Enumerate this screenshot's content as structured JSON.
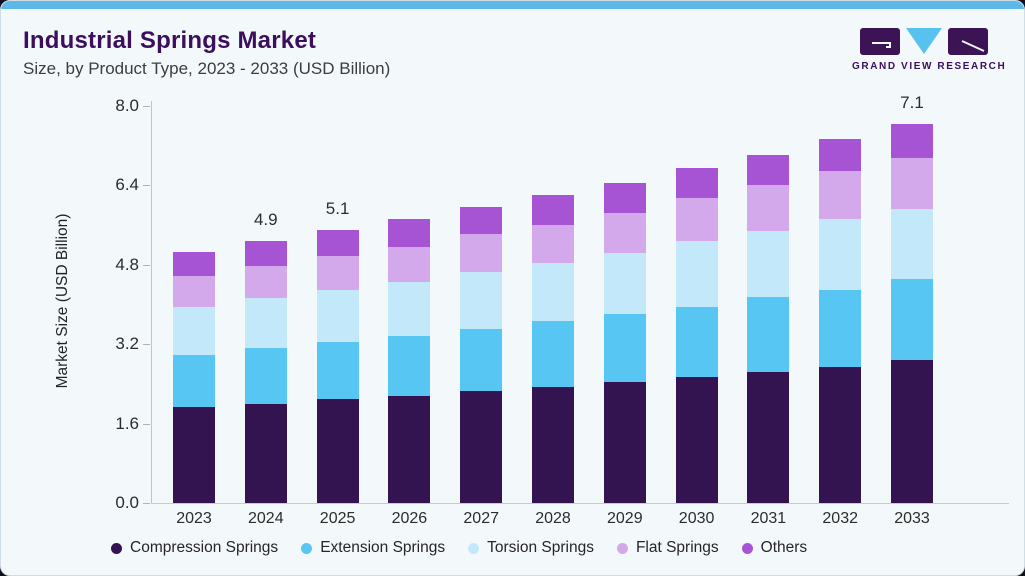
{
  "header": {
    "title": "Industrial Springs Market",
    "subtitle": "Size, by Product Type, 2023 - 2033 (USD Billion)"
  },
  "logo": {
    "text": "GRAND VIEW RESEARCH",
    "purple": "#3c1354",
    "cyan": "#56c2ed"
  },
  "colors": {
    "card_background": "#f3f8fb",
    "top_strip": "#5cb9e7",
    "title_text": "#3c0e5e",
    "axis_text": "#2c2c2c"
  },
  "chart_data": {
    "type": "bar",
    "stacked": true,
    "title": "Industrial Springs Market Size, by Product Type, 2023 - 2033 (USD Billion)",
    "xlabel": "",
    "ylabel": "Market Size (USD Billion)",
    "ylim": [
      0,
      8.0
    ],
    "y_ticks": [
      "0.0",
      "1.6",
      "3.2",
      "4.8",
      "6.4",
      "8.0"
    ],
    "grid": false,
    "legend_position": "bottom",
    "categories": [
      "2023",
      "2024",
      "2025",
      "2026",
      "2027",
      "2028",
      "2029",
      "2030",
      "2031",
      "2032",
      "2033"
    ],
    "series": [
      {
        "name": "Compression Springs",
        "color": "#341450",
        "values": [
          1.79,
          1.85,
          1.94,
          2.0,
          2.09,
          2.18,
          2.26,
          2.36,
          2.45,
          2.55,
          2.68
        ]
      },
      {
        "name": "Extension Springs",
        "color": "#58c6f2",
        "values": [
          0.99,
          1.05,
          1.07,
          1.12,
          1.17,
          1.22,
          1.28,
          1.32,
          1.4,
          1.43,
          1.51
        ]
      },
      {
        "name": "Torsion Springs",
        "color": "#c3e8f9",
        "values": [
          0.89,
          0.94,
          0.97,
          1.01,
          1.06,
          1.09,
          1.15,
          1.22,
          1.25,
          1.34,
          1.32
        ]
      },
      {
        "name": "Flat Springs",
        "color": "#d3a9ec",
        "values": [
          0.59,
          0.59,
          0.64,
          0.67,
          0.71,
          0.72,
          0.75,
          0.81,
          0.86,
          0.89,
          0.95
        ]
      },
      {
        "name": "Others",
        "color": "#a654d4",
        "values": [
          0.44,
          0.47,
          0.49,
          0.51,
          0.52,
          0.56,
          0.56,
          0.56,
          0.56,
          0.6,
          0.64
        ]
      }
    ],
    "totals": [
      4.7,
      4.9,
      5.1,
      5.3,
      5.5,
      5.8,
      6.0,
      6.3,
      6.5,
      6.8,
      7.1
    ],
    "bar_total_labels": {
      "2024": "4.9",
      "2025": "5.1",
      "2033": "7.1"
    }
  }
}
